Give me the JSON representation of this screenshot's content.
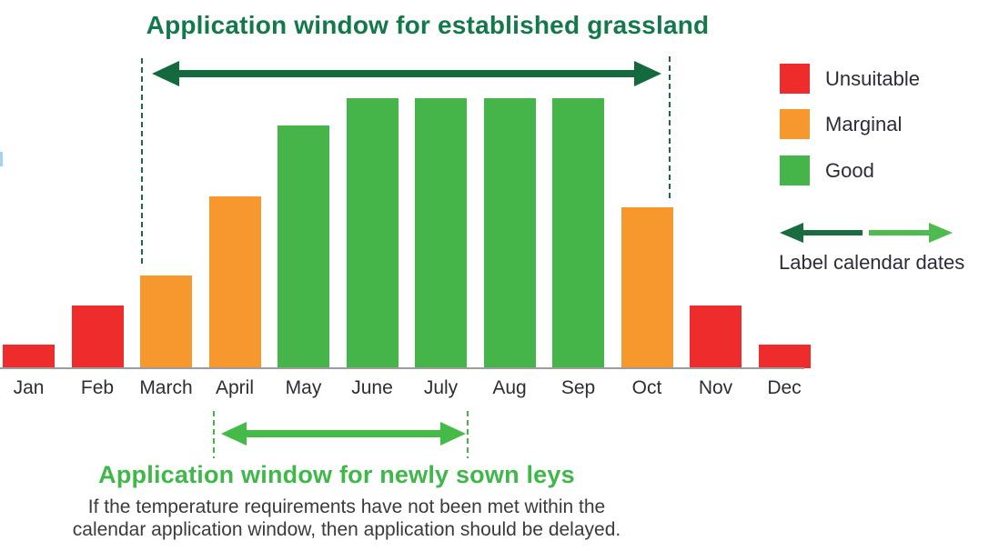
{
  "title": "Application window for established grassland",
  "newly_sown_title": "Application window for newly sown leys",
  "footnote": {
    "line1": "If the temperature requirements have not been met within the",
    "line2": "calendar application window, then application should be delayed."
  },
  "legend": {
    "items": [
      {
        "label": "Unsuitable",
        "color": "#ee2c2c"
      },
      {
        "label": "Marginal",
        "color": "#f6982e"
      },
      {
        "label": "Good",
        "color": "#45b549"
      }
    ],
    "arrows_label": "Label calendar dates",
    "dark_arrow_color": "#1b6b40",
    "light_arrow_color": "#4fba50"
  },
  "chart_data": {
    "type": "bar",
    "title": "Application window for established grassland",
    "categories": [
      "Jan",
      "Feb",
      "March",
      "April",
      "May",
      "June",
      "July",
      "Aug",
      "Sep",
      "Oct",
      "Nov",
      "Dec"
    ],
    "values": [
      26,
      69,
      102,
      189,
      267,
      297,
      297,
      297,
      297,
      177,
      69,
      26
    ],
    "ratings": [
      "Unsuitable",
      "Unsuitable",
      "Marginal",
      "Marginal",
      "Good",
      "Good",
      "Good",
      "Good",
      "Good",
      "Marginal",
      "Unsuitable",
      "Unsuitable"
    ],
    "colors": {
      "Unsuitable": "#ee2c2c",
      "Marginal": "#f6982e",
      "Good": "#45b549"
    },
    "xlabel": "",
    "ylabel": "",
    "ylim": [
      0,
      320
    ],
    "grid": false,
    "legend_position": "right",
    "annotations": [
      {
        "label": "Application window for established grassland",
        "from": "March",
        "to": "Oct",
        "arrow_color": "#15693e"
      },
      {
        "label": "Application window for newly sown leys",
        "from": "April",
        "to": "July",
        "arrow_color": "#45bb47"
      }
    ]
  }
}
